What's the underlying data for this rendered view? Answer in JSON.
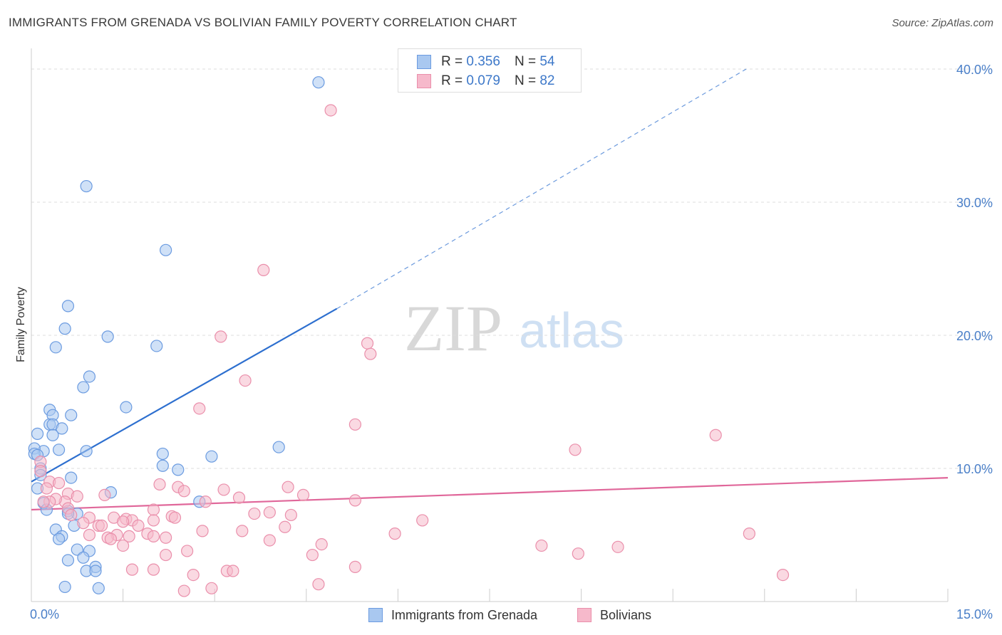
{
  "title": "IMMIGRANTS FROM GRENADA VS BOLIVIAN FAMILY POVERTY CORRELATION CHART",
  "source": "Source: ZipAtlas.com",
  "watermark": {
    "zip": "ZIP",
    "atlas": "atlas"
  },
  "colors": {
    "blue_fill": "#a9c8f0",
    "blue_stroke": "#6b9be0",
    "blue_line": "#2d6fcf",
    "pink_fill": "#f6b9cb",
    "pink_stroke": "#ea8fab",
    "pink_line": "#e0679a",
    "tick_text": "#4a7fc8",
    "grid": "#dddddd"
  },
  "legend": {
    "rows": [
      {
        "r_label": "R =",
        "r_value": "0.356",
        "n_label": "N =",
        "n_value": "54"
      },
      {
        "r_label": "R =",
        "r_value": "0.079",
        "n_label": "N =",
        "n_value": "82"
      }
    ],
    "series": [
      "Immigrants from Grenada",
      "Bolivians"
    ]
  },
  "chart_data": {
    "type": "scatter",
    "title": "IMMIGRANTS FROM GRENADA VS BOLIVIAN FAMILY POVERTY CORRELATION CHART",
    "xlabel": "",
    "ylabel": "Family Poverty",
    "xlim": [
      0,
      15
    ],
    "ylim": [
      0,
      40
    ],
    "x_tick_labels": [
      "0.0%",
      "15.0%"
    ],
    "y_ticks": [
      10,
      20,
      30,
      40
    ],
    "y_tick_labels": [
      "10.0%",
      "20.0%",
      "30.0%",
      "40.0%"
    ],
    "series": [
      {
        "name": "Immigrants from Grenada",
        "R": 0.356,
        "N": 54,
        "trend": {
          "x0": 0.0,
          "y0": 9.0,
          "x1_solid": 5.0,
          "y1_solid": 22.0,
          "x1_dashed": 11.7,
          "y1_dashed": 40.0
        },
        "points": [
          [
            4.7,
            39.0
          ],
          [
            0.9,
            31.2
          ],
          [
            2.2,
            26.4
          ],
          [
            0.6,
            22.2
          ],
          [
            0.55,
            20.5
          ],
          [
            1.25,
            19.9
          ],
          [
            2.05,
            19.2
          ],
          [
            0.4,
            19.1
          ],
          [
            0.95,
            16.9
          ],
          [
            0.85,
            16.1
          ],
          [
            1.55,
            14.6
          ],
          [
            0.3,
            14.4
          ],
          [
            0.65,
            14.0
          ],
          [
            0.35,
            14.0
          ],
          [
            0.3,
            13.3
          ],
          [
            0.35,
            13.3
          ],
          [
            0.5,
            13.0
          ],
          [
            0.1,
            12.6
          ],
          [
            0.35,
            12.5
          ],
          [
            0.2,
            11.3
          ],
          [
            0.05,
            11.5
          ],
          [
            0.05,
            11.1
          ],
          [
            0.45,
            11.4
          ],
          [
            0.9,
            11.3
          ],
          [
            2.15,
            11.1
          ],
          [
            2.95,
            10.9
          ],
          [
            4.05,
            11.6
          ],
          [
            2.15,
            10.2
          ],
          [
            2.4,
            9.9
          ],
          [
            0.15,
            10.0
          ],
          [
            0.15,
            9.5
          ],
          [
            0.65,
            9.3
          ],
          [
            0.1,
            8.5
          ],
          [
            1.3,
            8.2
          ],
          [
            0.2,
            7.4
          ],
          [
            0.25,
            6.9
          ],
          [
            0.6,
            6.8
          ],
          [
            0.75,
            6.6
          ],
          [
            2.75,
            7.5
          ],
          [
            0.7,
            5.7
          ],
          [
            0.4,
            5.4
          ],
          [
            0.5,
            4.9
          ],
          [
            0.45,
            4.7
          ],
          [
            0.75,
            3.9
          ],
          [
            0.95,
            3.8
          ],
          [
            0.85,
            3.3
          ],
          [
            0.6,
            3.1
          ],
          [
            1.05,
            2.6
          ],
          [
            0.9,
            2.3
          ],
          [
            1.05,
            2.3
          ],
          [
            0.55,
            1.1
          ],
          [
            1.1,
            1.0
          ],
          [
            0.1,
            11.0
          ],
          [
            0.6,
            6.6
          ]
        ]
      },
      {
        "name": "Bolivians",
        "R": 0.079,
        "N": 82,
        "trend": {
          "x0": 0.0,
          "y0": 6.9,
          "x1": 15.0,
          "y1": 9.3
        },
        "points": [
          [
            4.9,
            36.9
          ],
          [
            3.8,
            24.9
          ],
          [
            3.1,
            19.9
          ],
          [
            5.5,
            19.4
          ],
          [
            5.55,
            18.6
          ],
          [
            3.5,
            16.6
          ],
          [
            2.75,
            14.5
          ],
          [
            5.3,
            13.3
          ],
          [
            11.2,
            12.5
          ],
          [
            8.9,
            11.4
          ],
          [
            0.15,
            10.5
          ],
          [
            0.15,
            9.8
          ],
          [
            0.3,
            9.0
          ],
          [
            0.25,
            8.5
          ],
          [
            0.45,
            8.9
          ],
          [
            0.6,
            8.1
          ],
          [
            0.55,
            7.5
          ],
          [
            0.75,
            7.9
          ],
          [
            0.4,
            7.7
          ],
          [
            0.3,
            7.5
          ],
          [
            0.2,
            7.5
          ],
          [
            1.2,
            8.0
          ],
          [
            2.1,
            8.8
          ],
          [
            2.4,
            8.6
          ],
          [
            2.5,
            8.3
          ],
          [
            3.15,
            8.4
          ],
          [
            3.4,
            7.8
          ],
          [
            4.2,
            8.6
          ],
          [
            4.45,
            8.0
          ],
          [
            5.3,
            7.6
          ],
          [
            2.85,
            7.5
          ],
          [
            0.6,
            7.0
          ],
          [
            0.65,
            6.5
          ],
          [
            0.95,
            6.3
          ],
          [
            1.35,
            6.3
          ],
          [
            1.55,
            6.2
          ],
          [
            1.65,
            6.1
          ],
          [
            1.75,
            5.7
          ],
          [
            2.0,
            6.9
          ],
          [
            2.3,
            6.4
          ],
          [
            2.35,
            6.3
          ],
          [
            3.65,
            6.6
          ],
          [
            3.9,
            6.7
          ],
          [
            4.25,
            6.5
          ],
          [
            6.4,
            6.1
          ],
          [
            0.85,
            5.9
          ],
          [
            1.1,
            5.7
          ],
          [
            1.15,
            5.7
          ],
          [
            1.4,
            5.0
          ],
          [
            1.6,
            4.9
          ],
          [
            1.9,
            5.1
          ],
          [
            2.0,
            4.9
          ],
          [
            2.2,
            4.8
          ],
          [
            2.8,
            5.3
          ],
          [
            3.45,
            5.3
          ],
          [
            4.15,
            5.6
          ],
          [
            5.95,
            5.1
          ],
          [
            11.75,
            5.1
          ],
          [
            0.95,
            5.0
          ],
          [
            1.25,
            4.8
          ],
          [
            1.3,
            4.7
          ],
          [
            1.5,
            4.2
          ],
          [
            2.55,
            3.8
          ],
          [
            2.2,
            3.5
          ],
          [
            3.9,
            4.6
          ],
          [
            4.75,
            4.3
          ],
          [
            4.6,
            3.5
          ],
          [
            8.35,
            4.2
          ],
          [
            8.95,
            3.6
          ],
          [
            9.6,
            4.1
          ],
          [
            1.65,
            2.4
          ],
          [
            2.0,
            2.4
          ],
          [
            2.65,
            2.0
          ],
          [
            3.2,
            2.3
          ],
          [
            3.3,
            2.3
          ],
          [
            5.3,
            2.6
          ],
          [
            12.3,
            2.0
          ],
          [
            4.7,
            1.3
          ],
          [
            2.5,
            0.8
          ],
          [
            2.95,
            1.0
          ],
          [
            2.0,
            6.1
          ],
          [
            1.5,
            6.0
          ]
        ]
      }
    ]
  }
}
